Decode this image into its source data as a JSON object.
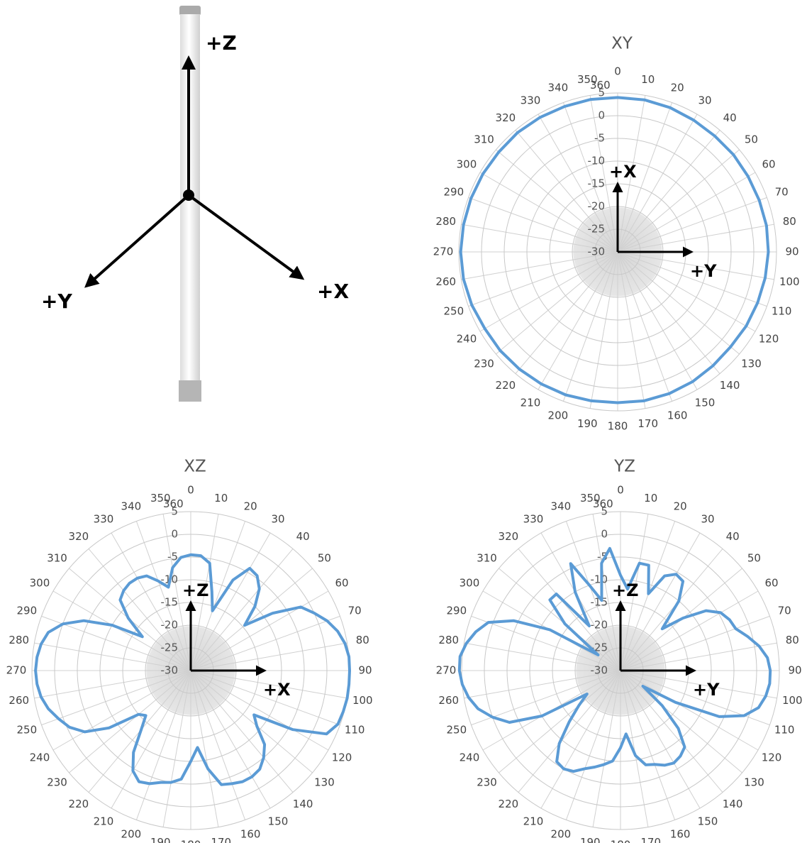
{
  "diagram": {
    "z_label": "+Z",
    "y_label": "+Y",
    "x_label": "+X"
  },
  "chart_data": [
    {
      "type": "polar",
      "title": "XY",
      "color": "#5b9bd5",
      "x": [
        0,
        10,
        20,
        30,
        40,
        50,
        60,
        70,
        80,
        90,
        100,
        110,
        120,
        130,
        140,
        150,
        160,
        170,
        180,
        190,
        200,
        210,
        220,
        230,
        240,
        250,
        260,
        270,
        280,
        290,
        300,
        310,
        320,
        330,
        340,
        350
      ],
      "values": [
        4,
        4,
        3.8,
        3.5,
        3.3,
        3.3,
        3.2,
        3.2,
        3.3,
        3.2,
        3,
        2.8,
        2.7,
        2.5,
        2.7,
        3,
        3.2,
        3.3,
        3.2,
        3.3,
        3.5,
        3.6,
        3.7,
        3.8,
        3.8,
        4.2,
        4.5,
        4.6,
        4.5,
        4.4,
        4.3,
        4.2,
        4.3,
        4.2,
        4.1,
        4.1
      ],
      "rlim": [
        -30,
        5
      ],
      "rticks": [
        5,
        0,
        -5,
        -10,
        -15,
        -20,
        -25,
        -30
      ],
      "angle_ticks": [
        0,
        10,
        20,
        30,
        40,
        50,
        60,
        70,
        80,
        90,
        100,
        110,
        120,
        130,
        140,
        150,
        160,
        170,
        180,
        190,
        200,
        210,
        220,
        230,
        240,
        250,
        260,
        270,
        280,
        290,
        300,
        310,
        320,
        330,
        340,
        350,
        360
      ],
      "axis_arrows": {
        "up": "+X",
        "right": "+Y"
      }
    },
    {
      "type": "polar",
      "title": "XZ",
      "color": "#5b9bd5",
      "x": [
        0,
        5,
        10,
        15,
        20,
        25,
        30,
        35,
        40,
        45,
        50,
        55,
        60,
        65,
        70,
        75,
        80,
        85,
        90,
        95,
        100,
        105,
        110,
        115,
        120,
        125,
        130,
        135,
        140,
        145,
        150,
        155,
        160,
        165,
        170,
        175,
        180,
        185,
        190,
        195,
        200,
        205,
        210,
        215,
        220,
        225,
        230,
        235,
        240,
        245,
        250,
        255,
        260,
        265,
        270,
        275,
        280,
        285,
        290,
        295,
        300,
        305,
        310,
        315,
        320,
        325,
        330,
        335,
        340,
        345,
        350,
        355
      ],
      "values": [
        -4.5,
        -4.6,
        -6,
        -12,
        -16,
        -8,
        -4,
        -4.5,
        -6.5,
        -10,
        -14.5,
        -8,
        -2,
        0,
        2,
        3.5,
        4.5,
        5,
        5,
        5,
        5,
        4.8,
        4.5,
        3,
        -4,
        -13,
        -11,
        -7,
        -5,
        -3.5,
        -3,
        -3,
        -3.5,
        -4,
        -8,
        -13,
        -10,
        -6,
        -5,
        -4.5,
        -3.5,
        -3,
        -4.5,
        -8,
        -13,
        -16,
        -15,
        -8,
        -3,
        -0.5,
        1,
        2.5,
        3.5,
        4,
        4.2,
        4,
        3.5,
        2.5,
        0,
        -4,
        -10,
        -17,
        -12,
        -8,
        -7,
        -6.5,
        -6.5,
        -7,
        -9,
        -11,
        -7,
        -5
      ],
      "rlim": [
        -30,
        5
      ],
      "rticks": [
        5,
        0,
        -5,
        -10,
        -15,
        -20,
        -25,
        -30
      ],
      "angle_ticks": [
        0,
        10,
        20,
        30,
        40,
        50,
        60,
        70,
        80,
        90,
        100,
        110,
        120,
        130,
        140,
        150,
        160,
        170,
        180,
        190,
        200,
        210,
        220,
        230,
        240,
        250,
        260,
        270,
        280,
        290,
        300,
        310,
        320,
        330,
        340,
        350,
        360
      ],
      "axis_arrows": {
        "up": "+Z",
        "right": "+X"
      }
    },
    {
      "type": "polar",
      "title": "YZ",
      "color": "#5b9bd5",
      "x": [
        0,
        5,
        10,
        15,
        20,
        25,
        30,
        35,
        40,
        45,
        50,
        55,
        60,
        65,
        70,
        75,
        80,
        85,
        90,
        95,
        100,
        105,
        110,
        115,
        120,
        125,
        130,
        135,
        140,
        145,
        150,
        155,
        160,
        165,
        170,
        175,
        180,
        185,
        190,
        195,
        200,
        205,
        210,
        215,
        220,
        225,
        230,
        235,
        240,
        245,
        250,
        255,
        260,
        265,
        270,
        275,
        280,
        285,
        290,
        295,
        300,
        305,
        310,
        315,
        320,
        325,
        330,
        335,
        340,
        345,
        350,
        355
      ],
      "values": [
        -9,
        -12,
        -6,
        -6,
        -12,
        -7,
        -5.5,
        -6,
        -10,
        -17,
        -12,
        -7,
        -4.5,
        -3.5,
        -3,
        -1,
        1,
        2.5,
        3,
        3,
        2.5,
        1.5,
        -1,
        -6,
        -16,
        -24,
        -18,
        -12,
        -8,
        -7,
        -6.5,
        -7,
        -8,
        -8.5,
        -11,
        -16,
        -13,
        -10,
        -9,
        -8,
        -7,
        -5.5,
        -5,
        -5.5,
        -9,
        -14,
        -18,
        -21,
        -10,
        -3,
        0,
        2.5,
        4,
        5,
        5.5,
        5.5,
        4.5,
        3,
        1,
        -4,
        -12,
        -24,
        -14,
        -8,
        -8,
        -18,
        -10,
        -4,
        -10,
        -14,
        -6,
        -3
      ],
      "rlim": [
        -30,
        5
      ],
      "rticks": [
        5,
        0,
        -5,
        -10,
        -15,
        -20,
        -25,
        -30
      ],
      "angle_ticks": [
        0,
        10,
        20,
        30,
        40,
        50,
        60,
        70,
        80,
        90,
        100,
        110,
        120,
        130,
        140,
        150,
        160,
        170,
        180,
        190,
        200,
        210,
        220,
        230,
        240,
        250,
        260,
        270,
        280,
        290,
        300,
        310,
        320,
        330,
        340,
        350,
        360
      ],
      "axis_arrows": {
        "up": "+Z",
        "right": "+Y"
      }
    }
  ]
}
